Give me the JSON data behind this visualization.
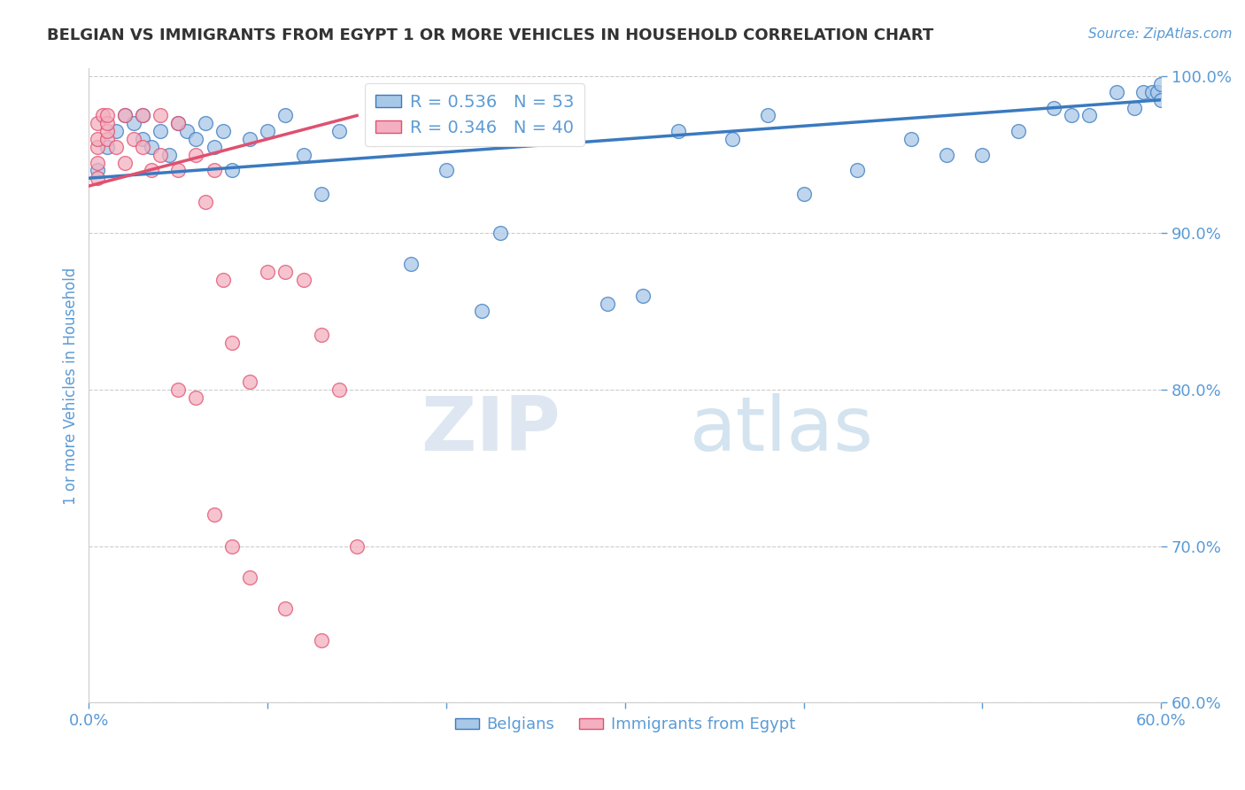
{
  "title": "BELGIAN VS IMMIGRANTS FROM EGYPT 1 OR MORE VEHICLES IN HOUSEHOLD CORRELATION CHART",
  "source_text": "Source: ZipAtlas.com",
  "ylabel": "1 or more Vehicles in Household",
  "legend_labels": [
    "Belgians",
    "Immigrants from Egypt"
  ],
  "legend_r_n": [
    {
      "R": 0.536,
      "N": 53
    },
    {
      "R": 0.346,
      "N": 40
    }
  ],
  "xlim": [
    0.0,
    0.6
  ],
  "ylim": [
    0.6,
    1.005
  ],
  "xticks": [
    0.0,
    0.1,
    0.2,
    0.3,
    0.4,
    0.5,
    0.6
  ],
  "xtick_labels": [
    "0.0%",
    "",
    "",
    "",
    "",
    "",
    "60.0%"
  ],
  "yticks": [
    0.6,
    0.7,
    0.8,
    0.9,
    1.0
  ],
  "ytick_labels": [
    "60.0%",
    "70.0%",
    "80.0%",
    "90.0%",
    "100.0%"
  ],
  "background_color": "#ffffff",
  "grid_color": "#cccccc",
  "watermark_zip": "ZIP",
  "watermark_atlas": "atlas",
  "blue_scatter_x": [
    0.005,
    0.01,
    0.015,
    0.02,
    0.025,
    0.03,
    0.03,
    0.035,
    0.04,
    0.045,
    0.05,
    0.055,
    0.06,
    0.065,
    0.07,
    0.075,
    0.08,
    0.09,
    0.1,
    0.11,
    0.12,
    0.13,
    0.14,
    0.16,
    0.18,
    0.19,
    0.2,
    0.21,
    0.22,
    0.23,
    0.25,
    0.27,
    0.29,
    0.31,
    0.33,
    0.36,
    0.38,
    0.4,
    0.43,
    0.46,
    0.48,
    0.5,
    0.52,
    0.54,
    0.55,
    0.56,
    0.575,
    0.585,
    0.59,
    0.595,
    0.598,
    0.6,
    0.6
  ],
  "blue_scatter_y": [
    0.94,
    0.955,
    0.965,
    0.975,
    0.97,
    0.96,
    0.975,
    0.955,
    0.965,
    0.95,
    0.97,
    0.965,
    0.96,
    0.97,
    0.955,
    0.965,
    0.94,
    0.96,
    0.965,
    0.975,
    0.95,
    0.925,
    0.965,
    0.96,
    0.88,
    0.97,
    0.94,
    0.965,
    0.85,
    0.9,
    0.96,
    0.975,
    0.855,
    0.86,
    0.965,
    0.96,
    0.975,
    0.925,
    0.94,
    0.96,
    0.95,
    0.95,
    0.965,
    0.98,
    0.975,
    0.975,
    0.99,
    0.98,
    0.99,
    0.99,
    0.99,
    0.995,
    0.985
  ],
  "pink_scatter_x": [
    0.005,
    0.005,
    0.005,
    0.005,
    0.005,
    0.008,
    0.01,
    0.01,
    0.01,
    0.01,
    0.015,
    0.02,
    0.02,
    0.025,
    0.03,
    0.03,
    0.035,
    0.04,
    0.04,
    0.05,
    0.05,
    0.06,
    0.065,
    0.07,
    0.075,
    0.08,
    0.09,
    0.1,
    0.11,
    0.12,
    0.13,
    0.14,
    0.15,
    0.05,
    0.06,
    0.07,
    0.08,
    0.09,
    0.11,
    0.13
  ],
  "pink_scatter_y": [
    0.935,
    0.945,
    0.955,
    0.96,
    0.97,
    0.975,
    0.96,
    0.965,
    0.97,
    0.975,
    0.955,
    0.945,
    0.975,
    0.96,
    0.955,
    0.975,
    0.94,
    0.95,
    0.975,
    0.94,
    0.97,
    0.95,
    0.92,
    0.94,
    0.87,
    0.83,
    0.805,
    0.875,
    0.875,
    0.87,
    0.835,
    0.8,
    0.7,
    0.8,
    0.795,
    0.72,
    0.7,
    0.68,
    0.66,
    0.64
  ],
  "blue_line_x0": 0.0,
  "blue_line_x1": 0.6,
  "blue_line_y0": 0.935,
  "blue_line_y1": 0.985,
  "pink_line_x0": 0.0,
  "pink_line_x1": 0.15,
  "pink_line_y0": 0.93,
  "pink_line_y1": 0.975,
  "blue_line_color": "#3a7abf",
  "pink_line_color": "#e05070",
  "blue_color": "#a8c8e8",
  "pink_color": "#f4b0c0",
  "title_color": "#333333",
  "axis_label_color": "#5b9bd5",
  "tick_color": "#5b9bd5"
}
